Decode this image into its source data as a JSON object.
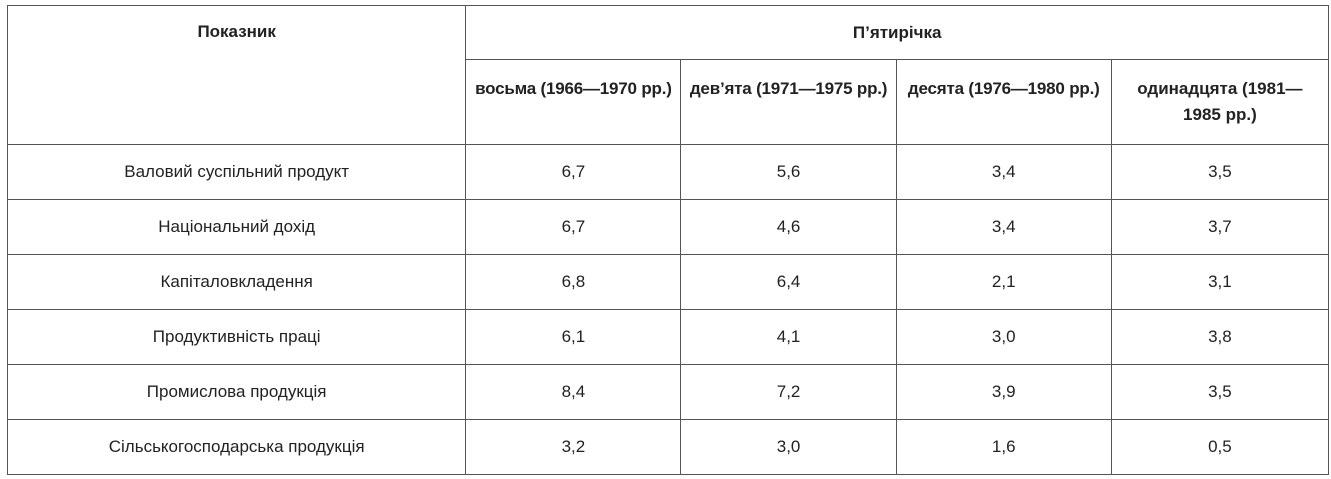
{
  "table": {
    "header_indicator": "Показник",
    "header_group": "П’ятирічка",
    "periods": [
      "восьма (1966—1970 рр.)",
      "дев’ята (1971—1975 рр.)",
      "десята (1976—1980 рр.)",
      "одинадцята (1981—1985 рр.)"
    ],
    "rows": [
      {
        "label": "Валовий суспільний продукт",
        "values": [
          "6,7",
          "5,6",
          "3,4",
          "3,5"
        ]
      },
      {
        "label": "Національний дохід",
        "values": [
          "6,7",
          "4,6",
          "3,4",
          "3,7"
        ]
      },
      {
        "label": "Капіталовкладення",
        "values": [
          "6,8",
          "6,4",
          "2,1",
          "3,1"
        ]
      },
      {
        "label": "Продуктивність праці",
        "values": [
          "6,1",
          "4,1",
          "3,0",
          "3,8"
        ]
      },
      {
        "label": "Промислова продукція",
        "values": [
          "8,4",
          "7,2",
          "3,9",
          "3,5"
        ]
      },
      {
        "label": "Сільськогосподарська продукція",
        "values": [
          "3,2",
          "3,0",
          "1,6",
          "0,5"
        ]
      }
    ]
  }
}
